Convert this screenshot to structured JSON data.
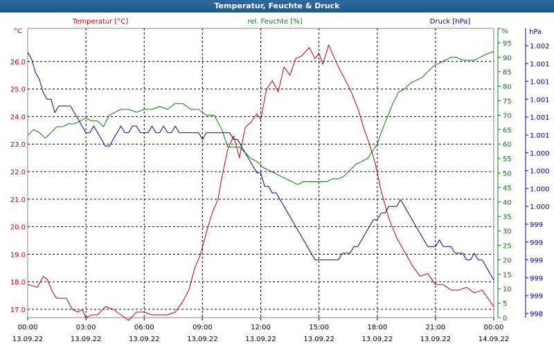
{
  "window": {
    "title": "Temperatur, Feuchte & Druck"
  },
  "chart_data": {
    "type": "line",
    "title": "Temperatur, Feuchte & Druck",
    "grid": true,
    "x_ticks": [
      {
        "time": "00:00",
        "date": "13.09.22",
        "hour": 0
      },
      {
        "time": "03:00",
        "date": "13.09.22",
        "hour": 3
      },
      {
        "time": "06:00",
        "date": "13.09.22",
        "hour": 6
      },
      {
        "time": "09:00",
        "date": "13.09.22",
        "hour": 9
      },
      {
        "time": "12:00",
        "date": "13.09.22",
        "hour": 12
      },
      {
        "time": "15:00",
        "date": "13.09.22",
        "hour": 15
      },
      {
        "time": "18:00",
        "date": "13.09.22",
        "hour": 18
      },
      {
        "time": "21:00",
        "date": "13.09.22",
        "hour": 21
      },
      {
        "time": "00:00",
        "date": "14.09.22",
        "hour": 24
      }
    ],
    "xlim": [
      0,
      24
    ],
    "axes": {
      "temperature": {
        "unit": "°C",
        "color": "#c00000",
        "ylim": [
          16.7,
          27.2
        ],
        "ticks": [
          "17.0",
          "18.0",
          "19.0",
          "20.0",
          "21.0",
          "22.0",
          "23.0",
          "24.0",
          "25.0",
          "26.0"
        ]
      },
      "humidity": {
        "unit": "%",
        "color": "#008000",
        "ylim": [
          0,
          100
        ],
        "ticks": [
          "0",
          "5",
          "10",
          "15",
          "20",
          "25",
          "30",
          "35",
          "40",
          "45",
          "50",
          "55",
          "60",
          "65",
          "70",
          "75",
          "80",
          "85",
          "90",
          "95",
          "100"
        ]
      },
      "pressure": {
        "unit": "hPa",
        "color": "#0000a0",
        "ticks": [
          "998",
          "999",
          "999",
          "999",
          "999",
          "999",
          "1.000",
          "1.000",
          "1.000",
          "1.000",
          "1.001",
          "1.001",
          "1.001",
          "1.001",
          "1.001",
          "1.002"
        ]
      }
    },
    "series": [
      {
        "name": "Temperatur [°C]",
        "axis": "temperature",
        "color": "#c00000",
        "x": [
          0,
          0.5,
          0.8,
          1,
          1.3,
          1.5,
          2,
          2.3,
          2.6,
          2.8,
          3,
          3.3,
          3.6,
          4,
          4.4,
          4.8,
          5.2,
          5.6,
          6,
          6.4,
          6.8,
          7.2,
          7.6,
          8,
          8.3,
          8.6,
          8.9,
          9.2,
          9.5,
          9.8,
          10,
          10.3,
          10.6,
          10.9,
          11.2,
          11.5,
          11.8,
          12,
          12.3,
          12.6,
          12.9,
          13.2,
          13.5,
          13.8,
          14.1,
          14.5,
          14.8,
          15,
          15.2,
          15.5,
          15.8,
          16,
          16.3,
          16.6,
          17,
          17.3,
          17.6,
          17.9,
          18.2,
          18.6,
          19,
          19.4,
          19.8,
          20.2,
          20.6,
          21,
          21.4,
          21.8,
          22.2,
          22.6,
          23,
          23.4,
          23.8,
          24
        ],
        "values": [
          17.9,
          17.8,
          18.2,
          18.1,
          17.6,
          17.4,
          17.4,
          17.0,
          16.9,
          17.0,
          16.7,
          16.8,
          16.8,
          17.1,
          17.0,
          16.8,
          16.6,
          16.9,
          16.9,
          16.8,
          16.8,
          16.8,
          16.9,
          17.3,
          17.7,
          18.5,
          19.0,
          19.8,
          20.5,
          21.0,
          21.8,
          22.8,
          23.3,
          22.5,
          23.6,
          23.8,
          24.1,
          23.9,
          25.0,
          25.3,
          24.9,
          25.8,
          25.5,
          26.1,
          26.2,
          26.5,
          26.1,
          26.3,
          25.9,
          26.6,
          26.1,
          25.8,
          25.4,
          25.0,
          24.3,
          23.6,
          23.0,
          22.3,
          21.3,
          20.3,
          19.6,
          19.1,
          18.6,
          18.2,
          18.3,
          17.9,
          17.9,
          17.7,
          17.7,
          17.8,
          17.6,
          17.7,
          17.3,
          17.1
        ]
      },
      {
        "name": "rel. Feuchte [%]",
        "axis": "humidity",
        "color": "#008000",
        "x": [
          0,
          0.3,
          0.6,
          0.9,
          1.2,
          1.5,
          1.8,
          2.1,
          2.4,
          2.7,
          3,
          3.3,
          3.6,
          3.9,
          4.2,
          4.5,
          4.8,
          5.2,
          5.6,
          6,
          6.4,
          6.8,
          7.2,
          7.6,
          8,
          8.4,
          8.8,
          9.2,
          9.6,
          10,
          10.3,
          10.6,
          10.9,
          11.2,
          11.5,
          11.8,
          12.1,
          12.4,
          12.7,
          13,
          13.3,
          13.6,
          13.9,
          14.2,
          14.5,
          14.8,
          15.1,
          15.4,
          15.7,
          16,
          16.3,
          16.6,
          16.9,
          17.2,
          17.5,
          17.8,
          18,
          18.2,
          18.5,
          18.8,
          19.1,
          19.4,
          19.7,
          20,
          20.3,
          20.6,
          20.9,
          21.2,
          21.5,
          21.8,
          22.1,
          22.4,
          22.7,
          23,
          23.3,
          23.6,
          24
        ],
        "values": [
          63,
          65,
          64,
          62,
          64,
          66,
          66,
          67,
          67,
          68,
          69,
          68,
          68,
          66,
          70,
          71,
          72,
          72,
          71,
          72,
          72,
          73,
          72,
          74,
          74,
          72,
          72,
          70,
          70,
          65,
          59,
          59,
          59,
          57,
          55,
          54,
          52,
          51,
          50,
          49,
          48,
          47,
          46,
          47,
          47,
          47,
          47,
          47,
          48,
          48,
          49,
          51,
          53,
          54,
          55,
          58,
          60,
          64,
          69,
          74,
          78,
          79,
          81,
          82,
          83,
          85,
          87,
          88,
          89,
          90,
          90,
          89,
          89,
          89,
          90,
          91,
          92
        ]
      },
      {
        "name": "Druck [hPa]",
        "axis": "pressure",
        "color": "#0000a0",
        "x": [
          0,
          0.2,
          0.4,
          0.6,
          0.8,
          1,
          1.2,
          1.4,
          1.6,
          1.8,
          2,
          2.2,
          2.4,
          2.6,
          2.8,
          3,
          3.2,
          3.4,
          3.6,
          3.8,
          4,
          4.2,
          4.4,
          4.6,
          4.8,
          5,
          5.2,
          5.4,
          5.6,
          5.8,
          6,
          6.2,
          6.4,
          6.6,
          6.8,
          7,
          7.2,
          7.4,
          7.6,
          7.8,
          8,
          8.2,
          8.4,
          8.6,
          8.8,
          9,
          9.2,
          9.4,
          9.6,
          9.8,
          10,
          10.2,
          10.4,
          10.6,
          10.8,
          11,
          11.2,
          11.4,
          11.6,
          11.8,
          12,
          12.2,
          12.4,
          12.6,
          12.8,
          13,
          13.2,
          13.4,
          13.6,
          13.8,
          14,
          14.2,
          14.4,
          14.6,
          14.8,
          15,
          15.2,
          15.4,
          15.6,
          15.8,
          16,
          16.2,
          16.4,
          16.6,
          16.8,
          17,
          17.2,
          17.4,
          17.6,
          17.8,
          18,
          18.2,
          18.4,
          18.6,
          18.8,
          19,
          19.2,
          19.4,
          19.6,
          19.8,
          20,
          20.2,
          20.4,
          20.6,
          20.8,
          21,
          21.2,
          21.4,
          21.6,
          21.8,
          22,
          22.2,
          22.4,
          22.6,
          22.8,
          23,
          23.2,
          23.4,
          23.6,
          23.8,
          24
        ],
        "values": [
          1001.9,
          1001.8,
          1001.6,
          1001.5,
          1001.3,
          1001.2,
          1001.2,
          1001.0,
          1001.1,
          1001.1,
          1001.1,
          1001.1,
          1001.0,
          1000.9,
          1000.8,
          1000.7,
          1000.7,
          1000.8,
          1000.7,
          1000.6,
          1000.5,
          1000.5,
          1000.6,
          1000.7,
          1000.8,
          1000.7,
          1000.7,
          1000.8,
          1000.8,
          1000.7,
          1000.7,
          1000.7,
          1000.8,
          1000.7,
          1000.7,
          1000.8,
          1000.7,
          1000.7,
          1000.8,
          1000.7,
          1000.7,
          1000.7,
          1000.7,
          1000.7,
          1000.7,
          1000.6,
          1000.7,
          1000.7,
          1000.7,
          1000.7,
          1000.7,
          1000.7,
          1000.7,
          1000.6,
          1000.6,
          1000.5,
          1000.4,
          1000.3,
          1000.2,
          1000.1,
          1000.1,
          999.9,
          999.9,
          999.8,
          999.8,
          999.7,
          999.6,
          999.5,
          999.4,
          999.3,
          999.2,
          999.1,
          999.0,
          998.9,
          998.8,
          998.8,
          998.8,
          998.8,
          998.8,
          998.8,
          998.8,
          998.9,
          998.9,
          998.9,
          999.0,
          999.0,
          999.1,
          999.2,
          999.3,
          999.4,
          999.4,
          999.5,
          999.5,
          999.6,
          999.6,
          999.6,
          999.7,
          999.6,
          999.5,
          999.4,
          999.3,
          999.2,
          999.1,
          999.0,
          999.0,
          999.0,
          999.1,
          999.0,
          999.0,
          999.0,
          998.9,
          998.9,
          998.9,
          998.8,
          998.8,
          998.9,
          998.8,
          998.8,
          998.7,
          998.6,
          998.5
        ]
      }
    ]
  }
}
